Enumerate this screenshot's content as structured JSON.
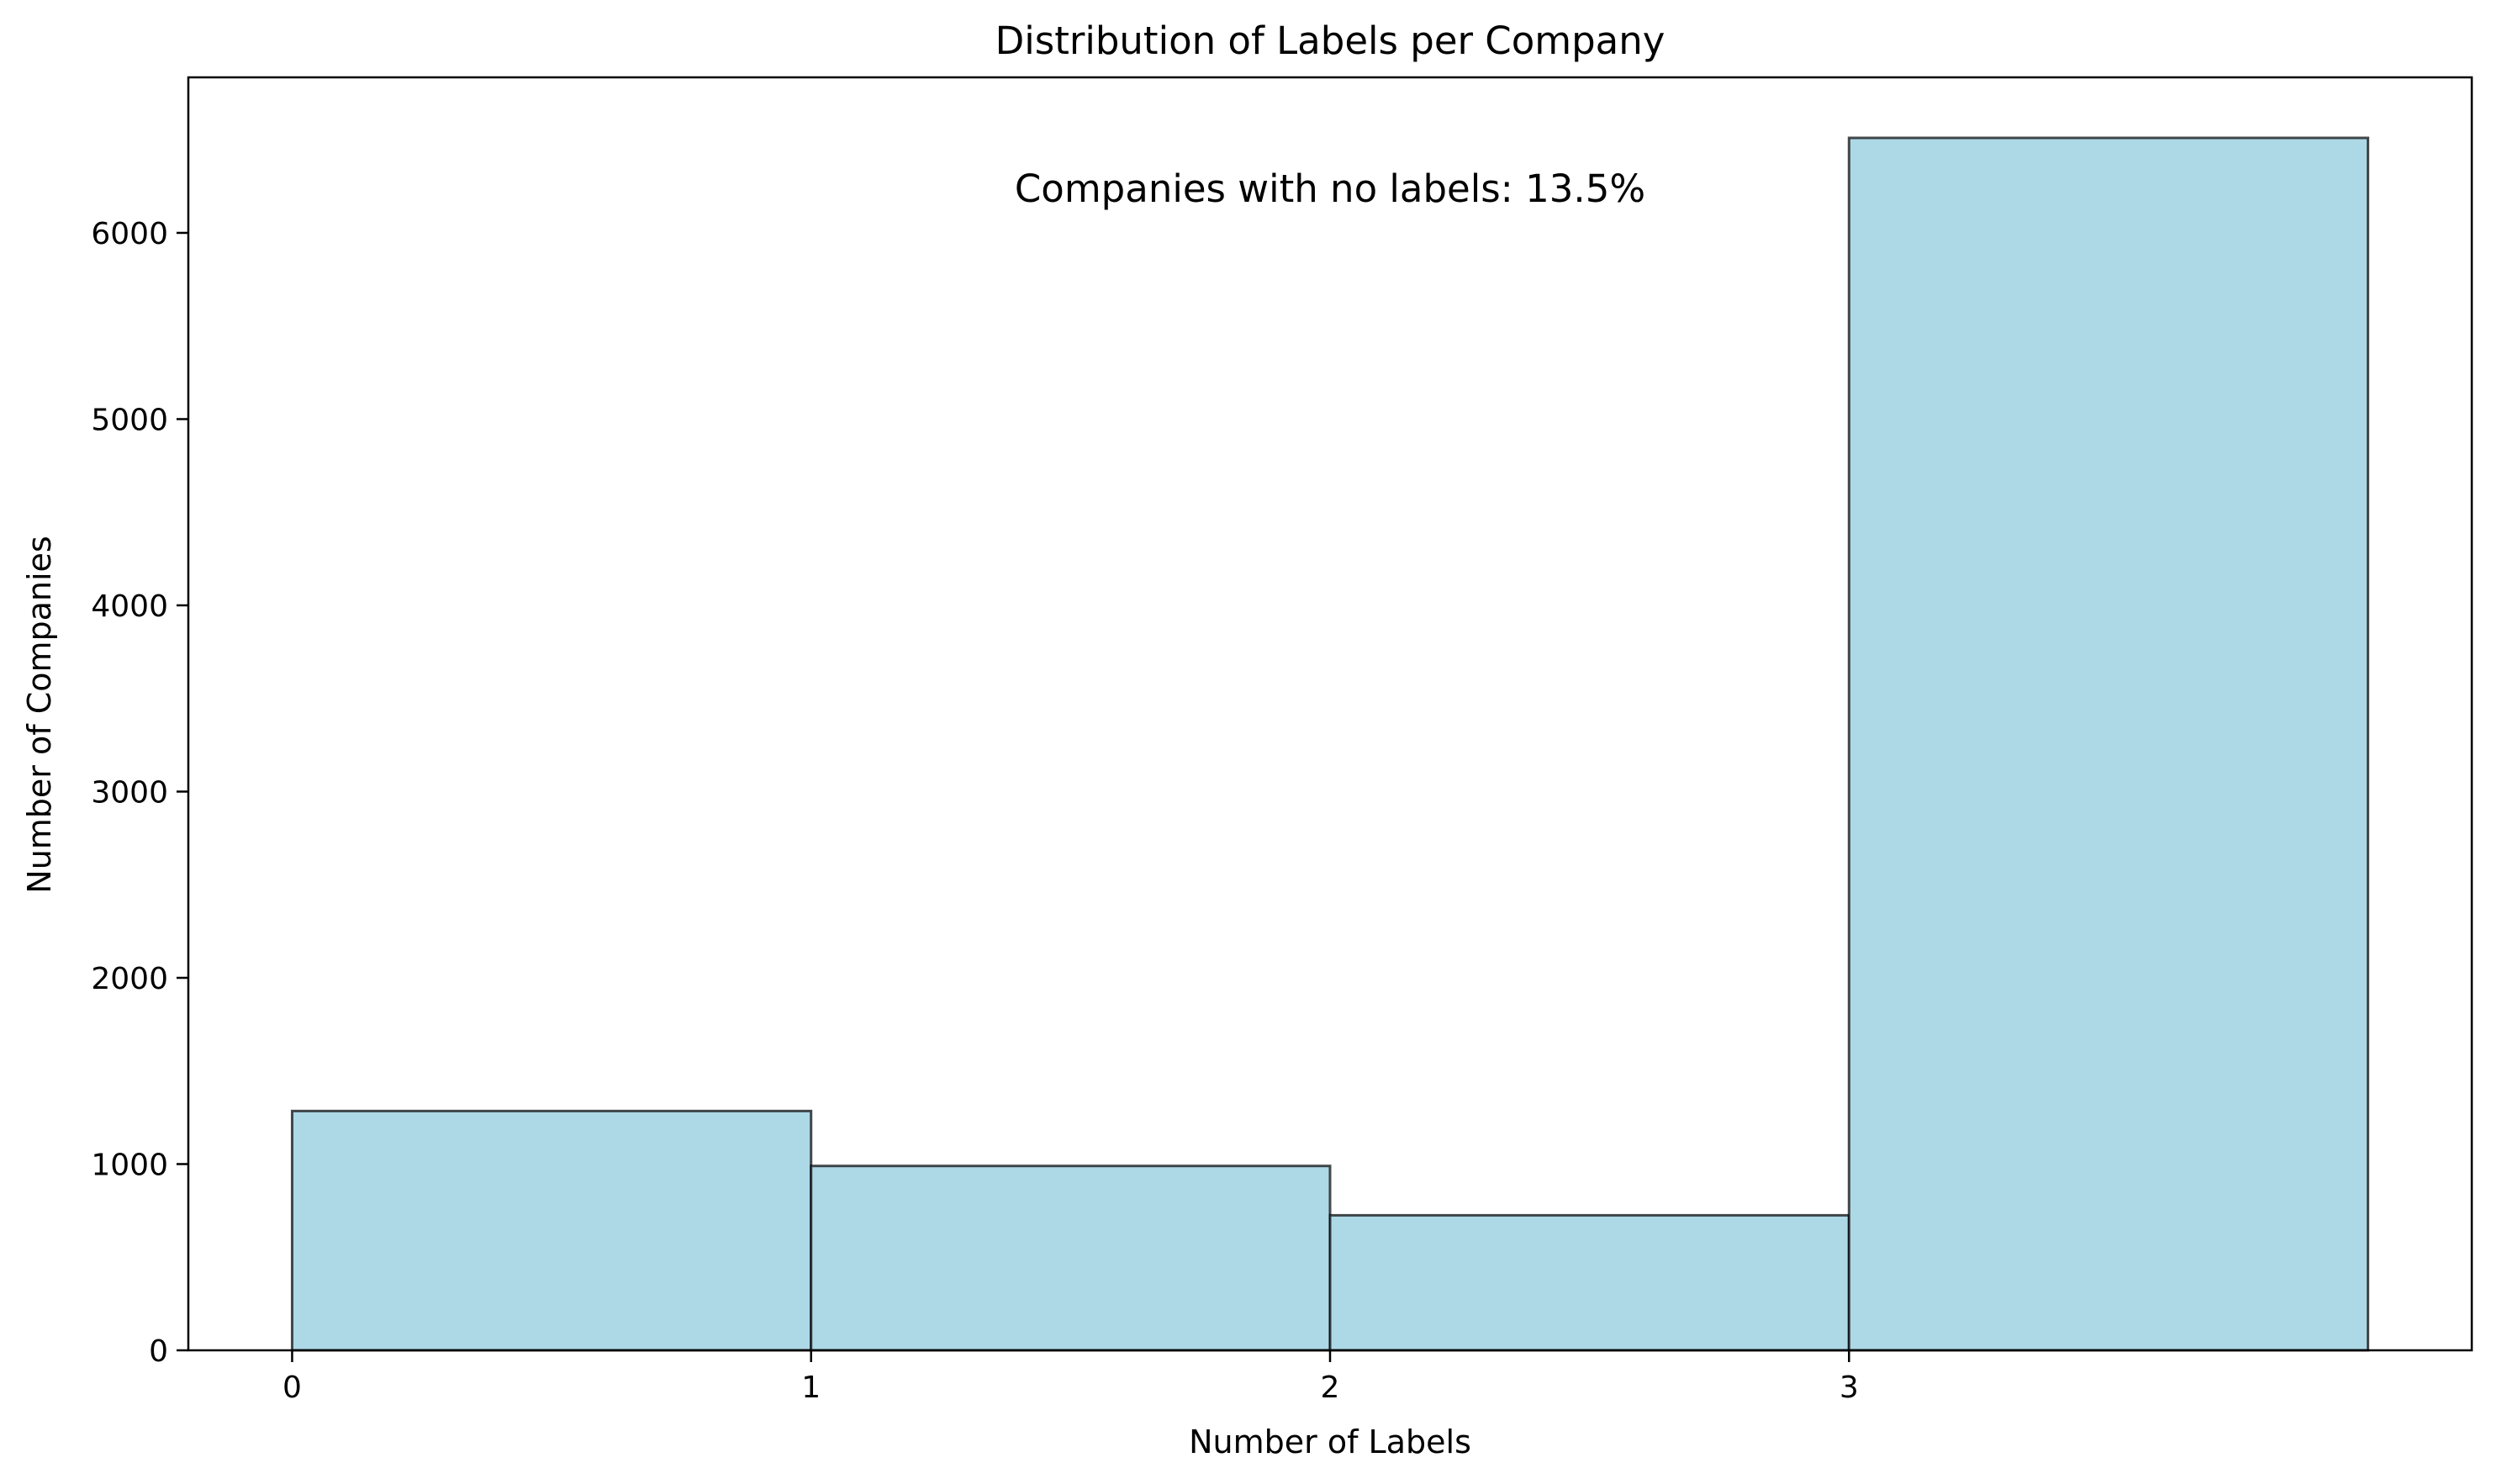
{
  "chart_data": {
    "type": "bar",
    "title": "Distribution of Labels per Company",
    "xlabel": "Number of Labels",
    "ylabel": "Number of Companies",
    "annotation": "Companies with no labels: 13.5%",
    "bins": [
      {
        "left": 0,
        "right": 1,
        "value": 1285
      },
      {
        "left": 1,
        "right": 2,
        "value": 990
      },
      {
        "left": 2,
        "right": 3,
        "value": 725
      },
      {
        "left": 3,
        "right": 4,
        "value": 6510
      }
    ],
    "x_ticks": [
      {
        "value": 0,
        "label": "0"
      },
      {
        "value": 1,
        "label": "1"
      },
      {
        "value": 2,
        "label": "2"
      },
      {
        "value": 3,
        "label": "3"
      }
    ],
    "y_ticks": [
      {
        "value": 0,
        "label": "0"
      },
      {
        "value": 1000,
        "label": "1000"
      },
      {
        "value": 2000,
        "label": "2000"
      },
      {
        "value": 3000,
        "label": "3000"
      },
      {
        "value": 4000,
        "label": "4000"
      },
      {
        "value": 5000,
        "label": "5000"
      },
      {
        "value": 6000,
        "label": "6000"
      }
    ],
    "xlim": [
      -0.2,
      4.2
    ],
    "ylim": [
      0,
      6835
    ],
    "grid": false,
    "legend": false,
    "bar_color": "#add8e6",
    "edge_color": "#000000"
  }
}
